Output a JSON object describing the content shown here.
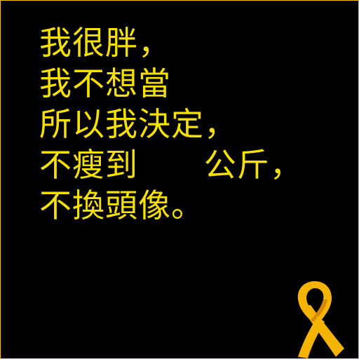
{
  "colors": {
    "background": "#000000",
    "text": "#f5e000",
    "ribbon": "#f4b400",
    "ribbon_shadow": "#d48a00",
    "border": "#f2c200"
  },
  "message": {
    "lines": [
      "我很胖，",
      "我不想當",
      "所以我決定，",
      "不瘦到      公斤，",
      "不換頭像。"
    ]
  },
  "decoration": {
    "icon": "yellow-ribbon-icon"
  }
}
